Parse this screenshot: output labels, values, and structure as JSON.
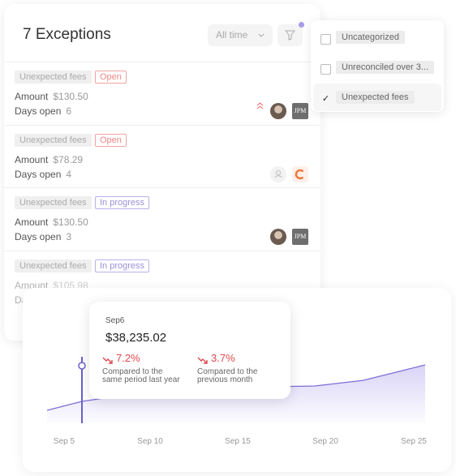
{
  "header": {
    "title": "7 Exceptions",
    "filter": "All time"
  },
  "exceptions": [
    {
      "category": "Unexpected fees",
      "status": "Open",
      "amount_label": "Amount",
      "amount": "$130.50",
      "days_label": "Days open",
      "days": "6",
      "avatar_label": "JPM"
    },
    {
      "category": "Unexpected fees",
      "status": "Open",
      "amount_label": "Amount",
      "amount": "$78.29",
      "days_label": "Days open",
      "days": "4"
    },
    {
      "category": "Unexpected fees",
      "status": "In progress",
      "amount_label": "Amount",
      "amount": "$130.50",
      "days_label": "Days open",
      "days": "3",
      "avatar_label": "JPM"
    },
    {
      "category": "Unexpected fees",
      "status": "In progress",
      "amount_label": "Amount",
      "amount": "$105.98",
      "days_label": "Days open"
    }
  ],
  "dropdown": [
    {
      "label": "Uncategorized",
      "checked": false
    },
    {
      "label": "Unreconciled over 3...",
      "checked": false
    },
    {
      "label": "Unexpected fees",
      "checked": true
    }
  ],
  "chart": {
    "tooltip": {
      "date": "Sep6",
      "value": "$38,235.02",
      "changes": [
        {
          "value": "7.2%",
          "caption": "Compared to the same period last year"
        },
        {
          "value": "3.7%",
          "caption": "Compared to the previous month"
        }
      ]
    },
    "x_labels": [
      "Sep 5",
      "Sep 10",
      "Sep 15",
      "Sep 20",
      "Sep 25"
    ]
  }
}
